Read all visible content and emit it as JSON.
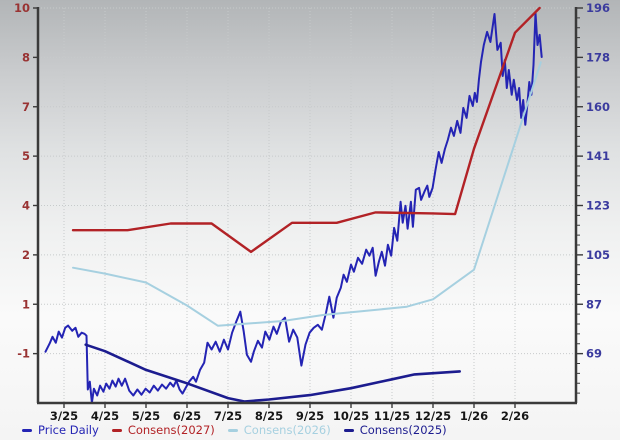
{
  "chart_data": {
    "type": "line",
    "title": "",
    "grid_color": "#c7cacb",
    "axis_color": "#3a3a3a",
    "x_axis": {
      "labels": [
        "3/25",
        "4/25",
        "5/25",
        "6/25",
        "7/25",
        "8/25",
        "9/25",
        "10/25",
        "11/25",
        "12/25",
        "1/26",
        "2/26"
      ],
      "label_color": "#161616"
    },
    "left_axis": {
      "tick_values": [
        10,
        8,
        7,
        5,
        4,
        2,
        1,
        -1
      ],
      "bottom_value": -2,
      "color": "#993333"
    },
    "right_axis": {
      "tick_values": [
        196,
        178,
        160,
        141,
        123,
        105,
        87,
        69
      ],
      "color": "#3b3b9e"
    },
    "series": [
      {
        "id": "price-daily",
        "name": "Price Daily",
        "color": "#2424b4",
        "axis": "price",
        "width": 2,
        "points": [
          [
            -0.45,
            69.7
          ],
          [
            -0.35,
            72.7
          ],
          [
            -0.28,
            75.2
          ],
          [
            -0.2,
            73
          ],
          [
            -0.13,
            77.1
          ],
          [
            -0.05,
            74.9
          ],
          [
            0.03,
            78.5
          ],
          [
            0.1,
            79.3
          ],
          [
            0.2,
            77.4
          ],
          [
            0.28,
            78.5
          ],
          [
            0.35,
            75.2
          ],
          [
            0.43,
            76.7
          ],
          [
            0.5,
            76.3
          ],
          [
            0.55,
            75.6
          ],
          [
            0.58,
            55.8
          ],
          [
            0.63,
            58.7
          ],
          [
            0.68,
            51
          ],
          [
            0.73,
            56.1
          ],
          [
            0.81,
            53.6
          ],
          [
            0.88,
            57.2
          ],
          [
            0.96,
            55
          ],
          [
            1.03,
            58
          ],
          [
            1.11,
            56.1
          ],
          [
            1.18,
            59.1
          ],
          [
            1.26,
            56.9
          ],
          [
            1.33,
            59.8
          ],
          [
            1.41,
            57.2
          ],
          [
            1.49,
            59.8
          ],
          [
            1.59,
            55.4
          ],
          [
            1.69,
            53.6
          ],
          [
            1.79,
            55.8
          ],
          [
            1.89,
            53.9
          ],
          [
            1.99,
            56.1
          ],
          [
            2.09,
            54.7
          ],
          [
            2.19,
            57.2
          ],
          [
            2.29,
            55.4
          ],
          [
            2.39,
            57.6
          ],
          [
            2.49,
            56.1
          ],
          [
            2.59,
            58.3
          ],
          [
            2.67,
            56.9
          ],
          [
            2.74,
            59.1
          ],
          [
            2.82,
            55.8
          ],
          [
            2.89,
            54.3
          ],
          [
            2.97,
            56.5
          ],
          [
            3.05,
            58.7
          ],
          [
            3.15,
            60.5
          ],
          [
            3.22,
            58.7
          ],
          [
            3.32,
            63.1
          ],
          [
            3.42,
            65.7
          ],
          [
            3.5,
            73
          ],
          [
            3.6,
            70.5
          ],
          [
            3.7,
            73.4
          ],
          [
            3.8,
            69.7
          ],
          [
            3.9,
            74.1
          ],
          [
            4,
            70.5
          ],
          [
            4.1,
            76.7
          ],
          [
            4.2,
            80.7
          ],
          [
            4.3,
            84.4
          ],
          [
            4.38,
            77.4
          ],
          [
            4.46,
            68.6
          ],
          [
            4.56,
            66
          ],
          [
            4.63,
            69.7
          ],
          [
            4.73,
            73.7
          ],
          [
            4.83,
            71.2
          ],
          [
            4.91,
            77.1
          ],
          [
            5.01,
            74.1
          ],
          [
            5.11,
            78.9
          ],
          [
            5.19,
            76.3
          ],
          [
            5.29,
            80.7
          ],
          [
            5.39,
            82.2
          ],
          [
            5.49,
            73.4
          ],
          [
            5.59,
            77.8
          ],
          [
            5.69,
            74.9
          ],
          [
            5.79,
            64.6
          ],
          [
            5.89,
            72.3
          ],
          [
            5.99,
            76.7
          ],
          [
            6.09,
            78.5
          ],
          [
            6.19,
            79.6
          ],
          [
            6.29,
            77.8
          ],
          [
            6.39,
            84
          ],
          [
            6.47,
            89.9
          ],
          [
            6.57,
            82.2
          ],
          [
            6.65,
            89.5
          ],
          [
            6.75,
            93.2
          ],
          [
            6.82,
            98
          ],
          [
            6.9,
            95.4
          ],
          [
            7,
            101.7
          ],
          [
            7.07,
            99.1
          ],
          [
            7.17,
            104.2
          ],
          [
            7.27,
            102
          ],
          [
            7.37,
            107.2
          ],
          [
            7.45,
            105
          ],
          [
            7.53,
            107.9
          ],
          [
            7.6,
            97.6
          ],
          [
            7.68,
            102.8
          ],
          [
            7.75,
            106.4
          ],
          [
            7.83,
            101.3
          ],
          [
            7.9,
            109
          ],
          [
            7.98,
            105
          ],
          [
            8.05,
            115.2
          ],
          [
            8.13,
            110.5
          ],
          [
            8.21,
            124.8
          ],
          [
            8.26,
            117.1
          ],
          [
            8.33,
            123.3
          ],
          [
            8.38,
            114.9
          ],
          [
            8.46,
            124.8
          ],
          [
            8.51,
            115.6
          ],
          [
            8.58,
            129.2
          ],
          [
            8.66,
            129.9
          ],
          [
            8.71,
            125.5
          ],
          [
            8.79,
            128.5
          ],
          [
            8.86,
            130.7
          ],
          [
            8.91,
            126.6
          ],
          [
            8.99,
            129.9
          ],
          [
            9.06,
            136.5
          ],
          [
            9.14,
            143.1
          ],
          [
            9.21,
            139.1
          ],
          [
            9.29,
            144.2
          ],
          [
            9.36,
            147.5
          ],
          [
            9.44,
            152
          ],
          [
            9.51,
            149
          ],
          [
            9.59,
            154.5
          ],
          [
            9.67,
            150.1
          ],
          [
            9.74,
            159.3
          ],
          [
            9.82,
            155.6
          ],
          [
            9.89,
            163.7
          ],
          [
            9.97,
            160
          ],
          [
            10.02,
            164.8
          ],
          [
            10.07,
            161.5
          ],
          [
            10.12,
            169.6
          ],
          [
            10.17,
            176.2
          ],
          [
            10.24,
            182.4
          ],
          [
            10.32,
            187.2
          ],
          [
            10.4,
            183.5
          ],
          [
            10.5,
            193.8
          ],
          [
            10.57,
            180.6
          ],
          [
            10.65,
            183.2
          ],
          [
            10.7,
            171
          ],
          [
            10.75,
            176.9
          ],
          [
            10.8,
            166.6
          ],
          [
            10.85,
            173.2
          ],
          [
            10.92,
            164.1
          ],
          [
            10.97,
            169.6
          ],
          [
            11.05,
            162.2
          ],
          [
            11.1,
            166.6
          ],
          [
            11.15,
            155.6
          ],
          [
            11.2,
            162.2
          ],
          [
            11.25,
            153.1
          ],
          [
            11.3,
            160.4
          ],
          [
            11.35,
            168.8
          ],
          [
            11.4,
            164.1
          ],
          [
            11.45,
            175.1
          ],
          [
            11.5,
            194.2
          ],
          [
            11.55,
            182.4
          ],
          [
            11.6,
            186.1
          ],
          [
            11.65,
            178
          ]
        ]
      },
      {
        "id": "consens-2027",
        "name": "Consens(2027)",
        "color": "#b22226",
        "axis": "left",
        "width": 2.4,
        "points": [
          [
            0.22,
            3.0
          ],
          [
            1,
            3.0
          ],
          [
            1.55,
            3.0
          ],
          [
            2.6,
            3.27
          ],
          [
            3.6,
            3.27
          ],
          [
            4.56,
            2.12
          ],
          [
            5.56,
            3.3
          ],
          [
            6.65,
            3.3
          ],
          [
            7.6,
            3.72
          ],
          [
            9,
            3.68
          ],
          [
            9.54,
            3.65
          ],
          [
            10,
            5.3
          ],
          [
            11,
            9.0
          ],
          [
            11.6,
            10.0
          ]
        ]
      },
      {
        "id": "consens-2026",
        "name": "Consens(2026)",
        "color": "#a6d0e0",
        "axis": "left",
        "width": 2,
        "points": [
          [
            0.22,
            1.74
          ],
          [
            1,
            1.62
          ],
          [
            2,
            1.44
          ],
          [
            3,
            0.95
          ],
          [
            3.75,
            0.13
          ],
          [
            4.33,
            0.2
          ],
          [
            5.34,
            0.32
          ],
          [
            6.34,
            0.57
          ],
          [
            7.35,
            0.73
          ],
          [
            8.36,
            0.9
          ],
          [
            9,
            1.1
          ],
          [
            10,
            1.7
          ],
          [
            11.63,
            7.9
          ]
        ]
      },
      {
        "id": "consens-2025",
        "name": "Consens(2025)",
        "color": "#1c1c8f",
        "axis": "left",
        "width": 2.6,
        "points": [
          [
            0.53,
            -0.64
          ],
          [
            1,
            -0.9
          ],
          [
            2,
            -1.33
          ],
          [
            3,
            -1.6
          ],
          [
            4,
            -1.9
          ],
          [
            4.4,
            -1.97
          ],
          [
            5,
            -1.93
          ],
          [
            6,
            -1.84
          ],
          [
            7,
            -1.7
          ],
          [
            8,
            -1.52
          ],
          [
            8.55,
            -1.42
          ],
          [
            9.65,
            -1.36
          ]
        ]
      }
    ]
  }
}
